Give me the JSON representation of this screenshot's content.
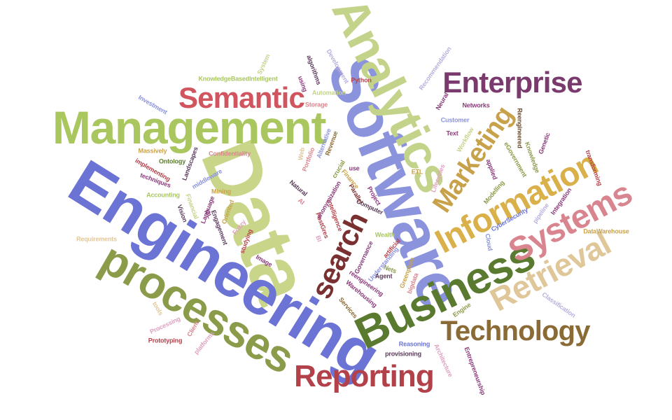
{
  "words": [
    {
      "text": "Data",
      "color": "#c9d68a"
    },
    {
      "text": "Software",
      "color": "#8b93dc"
    },
    {
      "text": "Engineering",
      "color": "#6b73d4"
    },
    {
      "text": "Analytics",
      "color": "#c4d38a"
    },
    {
      "text": "Management",
      "color": "#a9c65f"
    },
    {
      "text": "processes",
      "color": "#8a9b4a"
    },
    {
      "text": "Business",
      "color": "#5a7a2f"
    },
    {
      "text": "Information",
      "color": "#d9b04a"
    },
    {
      "text": "Systems",
      "color": "#d9858f"
    },
    {
      "text": "Retrieval",
      "color": "#e0c79a"
    },
    {
      "text": "Technology",
      "color": "#8a6a35"
    },
    {
      "text": "Reporting",
      "color": "#b3414a"
    },
    {
      "text": "Enterprise",
      "color": "#7a3a6e"
    },
    {
      "text": "Semantic",
      "color": "#d1555f"
    },
    {
      "text": "Marketing",
      "color": "#c8a24a"
    },
    {
      "text": "search",
      "color": "#7a3030"
    },
    {
      "text": "KnowledgeBasedIntelligent",
      "color": "#a9c65f"
    },
    {
      "text": "Python",
      "color": "#b3414a"
    },
    {
      "text": "Automation",
      "color": "#c4d38a"
    },
    {
      "text": "Storage",
      "color": "#d9858f"
    },
    {
      "text": "Recommendation",
      "color": "#b8b0dc"
    },
    {
      "text": "Neural",
      "color": "#8a3a7a"
    },
    {
      "text": "Networks",
      "color": "#8a3a7a"
    },
    {
      "text": "Customer",
      "color": "#8b93dc"
    },
    {
      "text": "Text",
      "color": "#8a3a7a"
    },
    {
      "text": "Reengineered",
      "color": "#6a4a2a"
    },
    {
      "text": "Genetic",
      "color": "#8a3a7a"
    },
    {
      "text": "Knowledge",
      "color": "#8a9b4a"
    },
    {
      "text": "transforming",
      "color": "#b3414a"
    },
    {
      "text": "eGovernment",
      "color": "#8a9b4a"
    },
    {
      "text": "Workflow",
      "color": "#c4d38a"
    },
    {
      "text": "Lifecycles",
      "color": "#e0a0c0"
    },
    {
      "text": "applied",
      "color": "#8a3a7a"
    },
    {
      "text": "Integration",
      "color": "#8a3a7a"
    },
    {
      "text": "Modelling",
      "color": "#8a9b4a"
    },
    {
      "text": "pipeline",
      "color": "#b8b0dc"
    },
    {
      "text": "CyberSecurity",
      "color": "#6b73d4"
    },
    {
      "text": "DataWarehouse",
      "color": "#c8a24a"
    },
    {
      "text": "Cloud",
      "color": "#8b93dc"
    },
    {
      "text": "Classification",
      "color": "#b8b0dc"
    },
    {
      "text": "Engine",
      "color": "#8a9b4a"
    },
    {
      "text": "Architecture",
      "color": "#e0a0c0"
    },
    {
      "text": "Entrepreneurship",
      "color": "#8a3a7a"
    },
    {
      "text": "Reasoning",
      "color": "#6b73d4"
    },
    {
      "text": "provisioning",
      "color": "#5a3a5a"
    },
    {
      "text": "bigdata",
      "color": "#d9858f"
    },
    {
      "text": "Greenplum",
      "color": "#c8a24a"
    },
    {
      "text": "Understanding",
      "color": "#8b93dc"
    },
    {
      "text": "Agent",
      "color": "#5a3a5a"
    },
    {
      "text": "Nets",
      "color": "#8a9b4a"
    },
    {
      "text": "artificial",
      "color": "#b3414a"
    },
    {
      "text": "Wealth",
      "color": "#a9c65f"
    },
    {
      "text": "reengineering",
      "color": "#8a3a7a"
    },
    {
      "text": "Warehousing",
      "color": "#8a3a7a"
    },
    {
      "text": "Services",
      "color": "#8a6a35"
    },
    {
      "text": "Governance",
      "color": "#8a3a7a"
    },
    {
      "text": "Computer",
      "color": "#5a3a5a"
    },
    {
      "text": "Project",
      "color": "#8a3a7a"
    },
    {
      "text": "Parallel",
      "color": "#7a3030"
    },
    {
      "text": "Finance",
      "color": "#c8a24a"
    },
    {
      "text": "intelligence",
      "color": "#b3414a"
    },
    {
      "text": "PostGres",
      "color": "#b3414a"
    },
    {
      "text": "BI",
      "color": "#e0a0c0"
    },
    {
      "text": "anonymization",
      "color": "#8a3a7a"
    },
    {
      "text": "Revenue",
      "color": "#8a6a35"
    },
    {
      "text": "crucial",
      "color": "#8a9b4a"
    },
    {
      "text": "Alternative",
      "color": "#8b93dc"
    },
    {
      "text": "Portfolio",
      "color": "#d9858f"
    },
    {
      "text": "Web",
      "color": "#e0c79a"
    },
    {
      "text": "use",
      "color": "#8a3a7a"
    },
    {
      "text": "ETL",
      "color": "#c8a24a"
    },
    {
      "text": "Natural",
      "color": "#5a3a5a"
    },
    {
      "text": "AI",
      "color": "#d9858f"
    },
    {
      "text": "Development",
      "color": "#b8b0dc"
    },
    {
      "text": "algorithms",
      "color": "#5a3a5a"
    },
    {
      "text": "using",
      "color": "#8a3a7a"
    },
    {
      "text": "System",
      "color": "#c4d38a"
    },
    {
      "text": "Investment",
      "color": "#8b93dc"
    },
    {
      "text": "Massively",
      "color": "#c8a24a"
    },
    {
      "text": "Confidentiality",
      "color": "#d9858f"
    },
    {
      "text": "Ontology",
      "color": "#5a7a2f"
    },
    {
      "text": "implementing",
      "color": "#b3414a"
    },
    {
      "text": "techniques",
      "color": "#8a3a7a"
    },
    {
      "text": "Landscapes",
      "color": "#5a3a5a"
    },
    {
      "text": "middleware",
      "color": "#8b93dc"
    },
    {
      "text": "Mining",
      "color": "#c8a24a"
    },
    {
      "text": "Accounting",
      "color": "#a9c65f"
    },
    {
      "text": "Financial",
      "color": "#c4d38a"
    },
    {
      "text": "Vision",
      "color": "#5a3a5a"
    },
    {
      "text": "ML",
      "color": "#8a3a7a"
    },
    {
      "text": "Language",
      "color": "#8a3a7a"
    },
    {
      "text": "Oriented",
      "color": "#c8a24a"
    },
    {
      "text": "Engagement",
      "color": "#5a3a5a"
    },
    {
      "text": "Fuzzy",
      "color": "#e0a0c0"
    },
    {
      "text": "studying",
      "color": "#b3414a"
    },
    {
      "text": "Image",
      "color": "#8a3a7a"
    },
    {
      "text": "Requirements",
      "color": "#e0c79a"
    },
    {
      "text": "tools",
      "color": "#e0c79a"
    },
    {
      "text": "Processing",
      "color": "#e0a0c0"
    },
    {
      "text": "Client",
      "color": "#d9858f"
    },
    {
      "text": "platforms",
      "color": "#e0a0c0"
    },
    {
      "text": "Prototyping",
      "color": "#b3414a"
    }
  ]
}
